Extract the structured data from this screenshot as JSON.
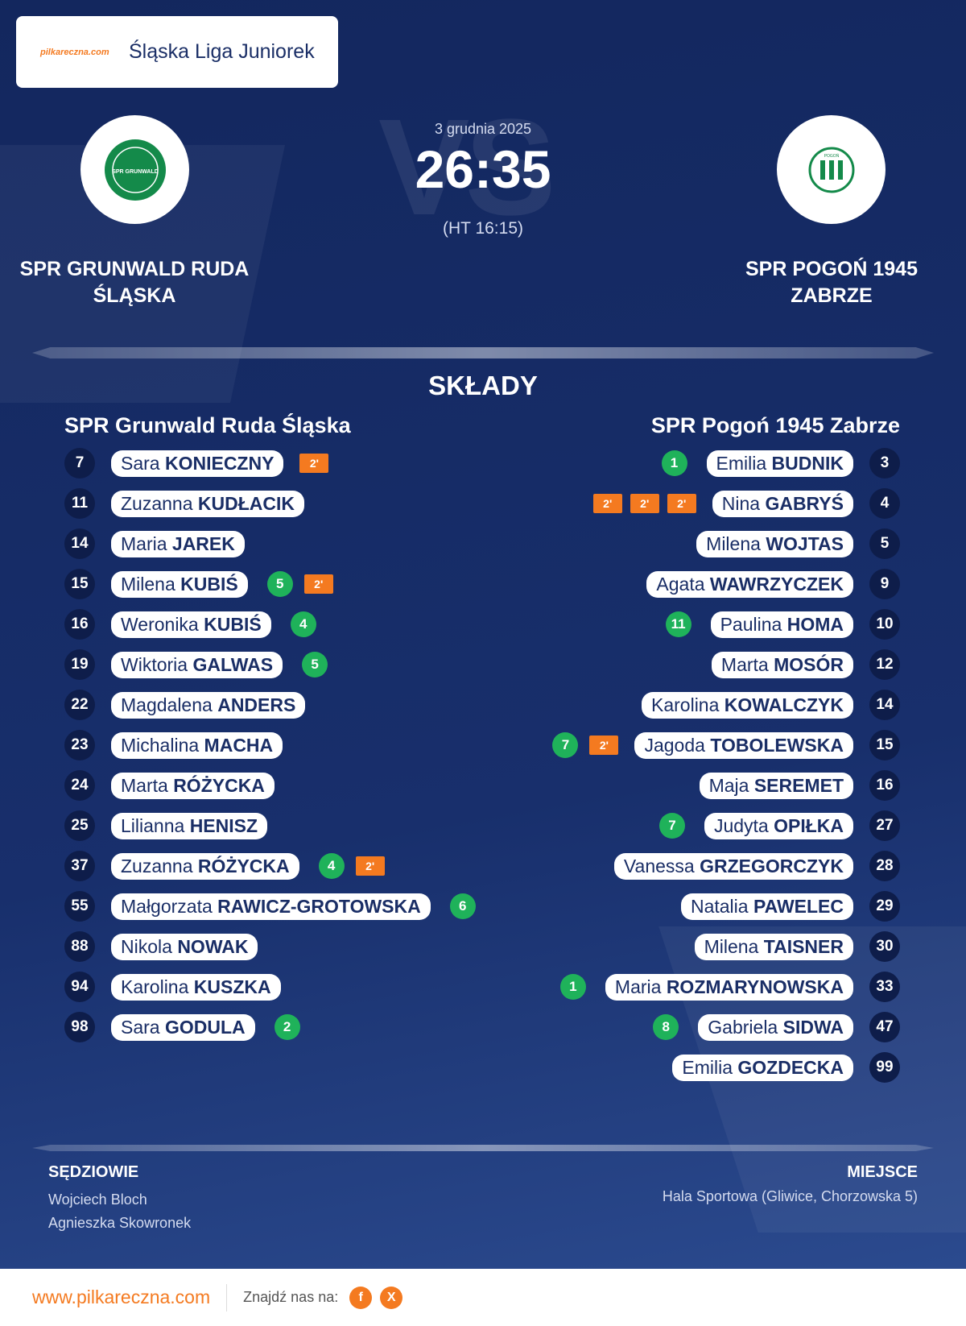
{
  "header": {
    "league": "Śląska Liga Juniorek",
    "logo_text": "pilkareczna",
    "logo_sub": ".com",
    "date": "3 grudnia 2025",
    "score": "26:35",
    "halftime": "(HT 16:15)",
    "watermark": "VS"
  },
  "home": {
    "name": "SPR GRUNWALD RUDA ŚLĄSKA",
    "logo_text": "SPR GRUNWALD"
  },
  "away": {
    "name": "SPR POGOŃ 1945 ZABRZE",
    "logo_text": "POGOŃ"
  },
  "lineups": {
    "title": "SKŁADY",
    "home": {
      "team": "SPR Grunwald Ruda Śląska",
      "players": [
        {
          "number": 7,
          "first": "Sara",
          "last": "KONIECZNY",
          "penalties": [
            "2'"
          ]
        },
        {
          "number": 11,
          "first": "Zuzanna",
          "last": "KUDŁACIK"
        },
        {
          "number": 14,
          "first": "Maria",
          "last": "JAREK"
        },
        {
          "number": 15,
          "first": "Milena",
          "last": "KUBIŚ",
          "goals": 5,
          "penalties": [
            "2'"
          ]
        },
        {
          "number": 16,
          "first": "Weronika",
          "last": "KUBIŚ",
          "goals": 4
        },
        {
          "number": 19,
          "first": "Wiktoria",
          "last": "GALWAS",
          "goals": 5
        },
        {
          "number": 22,
          "first": "Magdalena",
          "last": "ANDERS"
        },
        {
          "number": 23,
          "first": "Michalina",
          "last": "MACHA"
        },
        {
          "number": 24,
          "first": "Marta",
          "last": "RÓŻYCKA"
        },
        {
          "number": 25,
          "first": "Lilianna",
          "last": "HENISZ"
        },
        {
          "number": 37,
          "first": "Zuzanna",
          "last": "RÓŻYCKA",
          "goals": 4,
          "penalties": [
            "2'"
          ]
        },
        {
          "number": 55,
          "first": "Małgorzata",
          "last": "RAWICZ-GROTOWSKA",
          "goals": 6
        },
        {
          "number": 88,
          "first": "Nikola",
          "last": "NOWAK"
        },
        {
          "number": 94,
          "first": "Karolina",
          "last": "KUSZKA"
        },
        {
          "number": 98,
          "first": "Sara",
          "last": "GODULA",
          "goals": 2
        }
      ]
    },
    "away": {
      "team": "SPR Pogoń 1945 Zabrze",
      "players": [
        {
          "number": 3,
          "first": "Emilia",
          "last": "BUDNIK",
          "goals": 1
        },
        {
          "number": 4,
          "first": "Nina",
          "last": "GABRYŚ",
          "penalties": [
            "2'",
            "2'",
            "2'"
          ]
        },
        {
          "number": 5,
          "first": "Milena",
          "last": "WOJTAS"
        },
        {
          "number": 9,
          "first": "Agata",
          "last": "WAWRZYCZEK"
        },
        {
          "number": 10,
          "first": "Paulina",
          "last": "HOMA",
          "goals": 11
        },
        {
          "number": 12,
          "first": "Marta",
          "last": "MOSÓR"
        },
        {
          "number": 14,
          "first": "Karolina",
          "last": "KOWALCZYK"
        },
        {
          "number": 15,
          "first": "Jagoda",
          "last": "TOBOLEWSKA",
          "goals": 7,
          "penalties": [
            "2'"
          ]
        },
        {
          "number": 16,
          "first": "Maja",
          "last": "SEREMET"
        },
        {
          "number": 27,
          "first": "Judyta",
          "last": "OPIŁKA",
          "goals": 7
        },
        {
          "number": 28,
          "first": "Vanessa",
          "last": "GRZEGORCZYK"
        },
        {
          "number": 29,
          "first": "Natalia",
          "last": "PAWELEC"
        },
        {
          "number": 30,
          "first": "Milena",
          "last": "TAISNER"
        },
        {
          "number": 33,
          "first": "Maria",
          "last": "ROZMARYNOWSKA",
          "goals": 1
        },
        {
          "number": 47,
          "first": "Gabriela",
          "last": "SIDWA",
          "goals": 8
        },
        {
          "number": 99,
          "first": "Emilia",
          "last": "GOZDECKA"
        }
      ]
    }
  },
  "officials": {
    "label": "SĘDZIOWIE",
    "names": [
      "Wojciech Bloch",
      "Agnieszka Skowronek"
    ]
  },
  "venue": {
    "label": "MIEJSCE",
    "name": "Hala Sportowa (Gliwice, Chorzowska 5)"
  },
  "footer": {
    "website": "www.pilkareczna.com",
    "follow": "Znajdź nas na:",
    "social": [
      "f",
      "X"
    ]
  }
}
